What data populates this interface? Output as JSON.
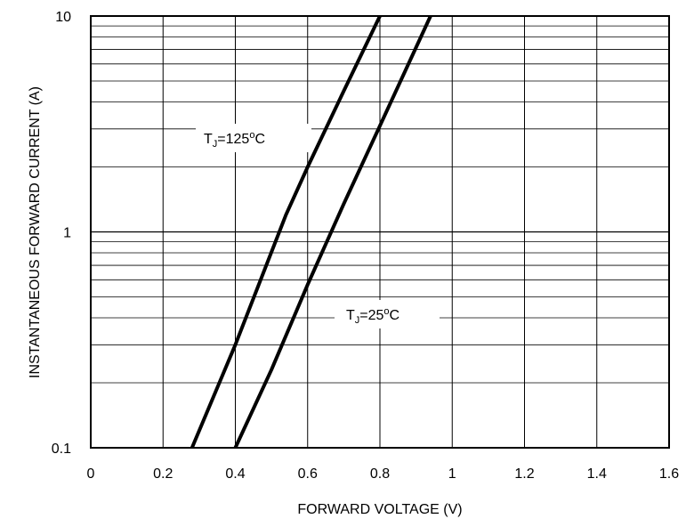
{
  "chart_data": {
    "type": "line",
    "title": "",
    "xlabel": "FORWARD VOLTAGE (V)",
    "ylabel": "INSTANTANEOUS FORWARD CURRENT (A)",
    "xlim": [
      0,
      1.6
    ],
    "ylim": [
      0.1,
      10
    ],
    "yscale": "log",
    "grid": true,
    "x_ticks": [
      "0",
      "0.2",
      "0.4",
      "0.6",
      "0.8",
      "1",
      "1.2",
      "1.4",
      "1.6"
    ],
    "y_ticks": [
      "0.1",
      "1",
      "10"
    ],
    "series": [
      {
        "name": "TJ=125°C",
        "label_main": "T",
        "label_sub": "J",
        "label_rest": "=125",
        "label_sup": "o",
        "label_unit": "C",
        "x": [
          0.28,
          0.4,
          0.54,
          0.6,
          0.7,
          0.8
        ],
        "y": [
          0.1,
          0.3,
          1.2,
          2.0,
          4.5,
          10
        ]
      },
      {
        "name": "TJ=25°C",
        "label_main": "T",
        "label_sub": "J",
        "label_rest": "=25",
        "label_sup": "o",
        "label_unit": "C",
        "x": [
          0.4,
          0.5,
          0.6,
          0.7,
          0.8,
          0.94
        ],
        "y": [
          0.1,
          0.23,
          0.57,
          1.35,
          3.1,
          10
        ]
      }
    ]
  }
}
